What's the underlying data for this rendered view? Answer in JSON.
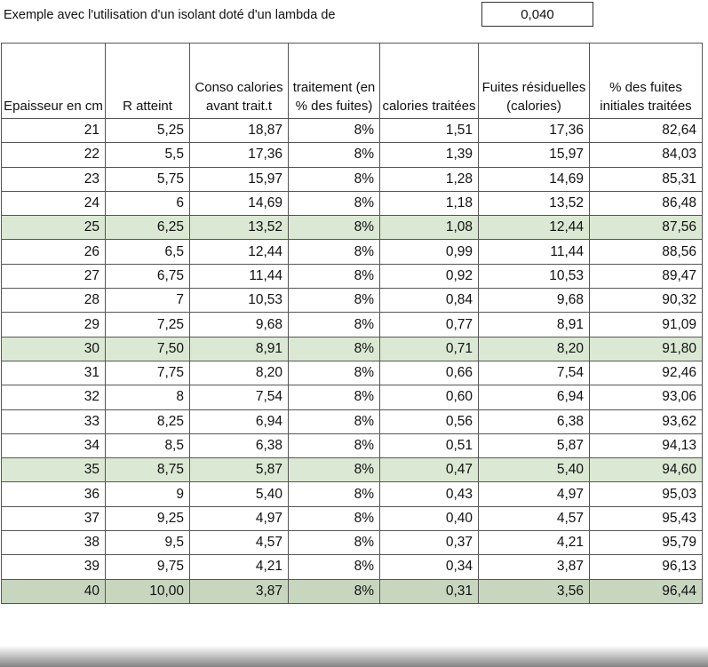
{
  "intro_text": "Exemple avec l'utilisation d'un isolant doté d'un lambda de",
  "lambda_value": "0,040",
  "headers": [
    "Epaisseur en cm",
    "R atteint",
    "Conso calories avant trait.t",
    "traitement (en % des fuites)",
    "calories traitées",
    "Fuites résiduelles (calories)",
    "% des fuites initiales traitées"
  ],
  "highlight_color": "#dbe8d3",
  "rows": [
    {
      "cells": [
        "21",
        "5,25",
        "18,87",
        "8%",
        "1,51",
        "17,36",
        "82,64"
      ],
      "highlight": false
    },
    {
      "cells": [
        "22",
        "5,5",
        "17,36",
        "8%",
        "1,39",
        "15,97",
        "84,03"
      ],
      "highlight": false
    },
    {
      "cells": [
        "23",
        "5,75",
        "15,97",
        "8%",
        "1,28",
        "14,69",
        "85,31"
      ],
      "highlight": false
    },
    {
      "cells": [
        "24",
        "6",
        "14,69",
        "8%",
        "1,18",
        "13,52",
        "86,48"
      ],
      "highlight": false
    },
    {
      "cells": [
        "25",
        "6,25",
        "13,52",
        "8%",
        "1,08",
        "12,44",
        "87,56"
      ],
      "highlight": true
    },
    {
      "cells": [
        "26",
        "6,5",
        "12,44",
        "8%",
        "0,99",
        "11,44",
        "88,56"
      ],
      "highlight": false
    },
    {
      "cells": [
        "27",
        "6,75",
        "11,44",
        "8%",
        "0,92",
        "10,53",
        "89,47"
      ],
      "highlight": false
    },
    {
      "cells": [
        "28",
        "7",
        "10,53",
        "8%",
        "0,84",
        "9,68",
        "90,32"
      ],
      "highlight": false
    },
    {
      "cells": [
        "29",
        "7,25",
        "9,68",
        "8%",
        "0,77",
        "8,91",
        "91,09"
      ],
      "highlight": false
    },
    {
      "cells": [
        "30",
        "7,50",
        "8,91",
        "8%",
        "0,71",
        "8,20",
        "91,80"
      ],
      "highlight": true
    },
    {
      "cells": [
        "31",
        "7,75",
        "8,20",
        "8%",
        "0,66",
        "7,54",
        "92,46"
      ],
      "highlight": false
    },
    {
      "cells": [
        "32",
        "8",
        "7,54",
        "8%",
        "0,60",
        "6,94",
        "93,06"
      ],
      "highlight": false
    },
    {
      "cells": [
        "33",
        "8,25",
        "6,94",
        "8%",
        "0,56",
        "6,38",
        "93,62"
      ],
      "highlight": false
    },
    {
      "cells": [
        "34",
        "8,5",
        "6,38",
        "8%",
        "0,51",
        "5,87",
        "94,13"
      ],
      "highlight": false
    },
    {
      "cells": [
        "35",
        "8,75",
        "5,87",
        "8%",
        "0,47",
        "5,40",
        "94,60"
      ],
      "highlight": true
    },
    {
      "cells": [
        "36",
        "9",
        "5,40",
        "8%",
        "0,43",
        "4,97",
        "95,03"
      ],
      "highlight": false
    },
    {
      "cells": [
        "37",
        "9,25",
        "4,97",
        "8%",
        "0,40",
        "4,57",
        "95,43"
      ],
      "highlight": false
    },
    {
      "cells": [
        "38",
        "9,5",
        "4,57",
        "8%",
        "0,37",
        "4,21",
        "95,79"
      ],
      "highlight": false
    },
    {
      "cells": [
        "39",
        "9,75",
        "4,21",
        "8%",
        "0,34",
        "3,87",
        "96,13"
      ],
      "highlight": false
    },
    {
      "cells": [
        "40",
        "10,00",
        "3,87",
        "8%",
        "0,31",
        "3,56",
        "96,44"
      ],
      "highlight": true
    }
  ]
}
